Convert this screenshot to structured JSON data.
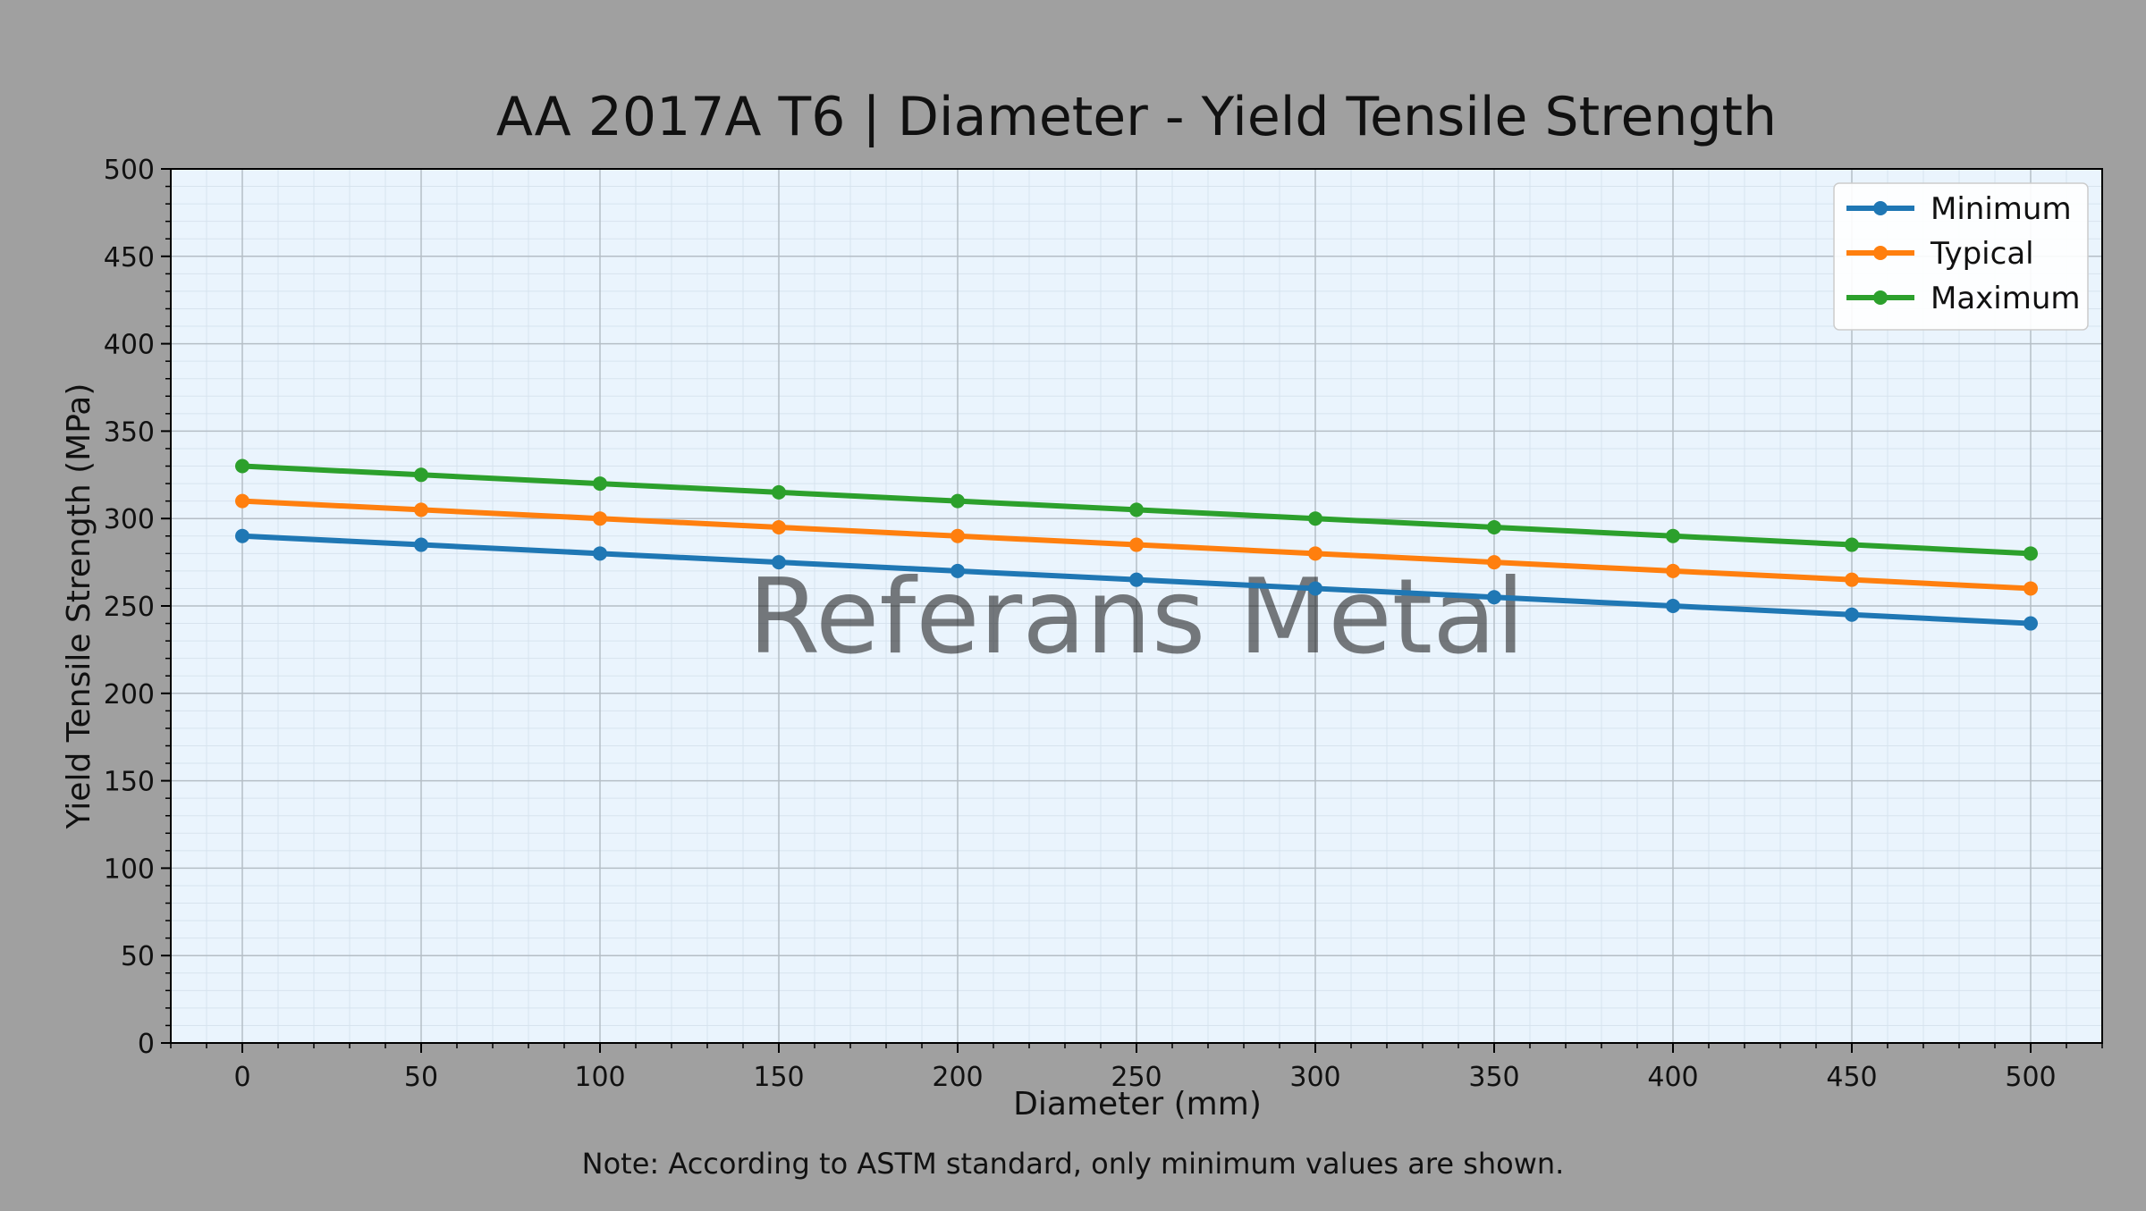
{
  "chart_data": {
    "type": "line",
    "title": "AA 2017A T6 | Diameter - Yield Tensile Strength",
    "xlabel": "Diameter (mm)",
    "ylabel": "Yield Tensile Strength (MPa)",
    "note": "Note: According to ASTM standard, only minimum values are shown.",
    "watermark": "Referans Metal",
    "x": [
      0,
      50,
      100,
      150,
      200,
      250,
      300,
      350,
      400,
      450,
      500
    ],
    "xlim": [
      -20,
      520
    ],
    "ylim": [
      0,
      500
    ],
    "xticks": [
      0,
      50,
      100,
      150,
      200,
      250,
      300,
      350,
      400,
      450,
      500
    ],
    "yticks": [
      0,
      50,
      100,
      150,
      200,
      250,
      300,
      350,
      400,
      450,
      500
    ],
    "grid": true,
    "minor_grid": true,
    "legend_position": "top-right",
    "series": [
      {
        "name": "Minimum",
        "color": "#1f77b4",
        "values": [
          290,
          285,
          280,
          275,
          270,
          265,
          260,
          255,
          250,
          245,
          240
        ]
      },
      {
        "name": "Typical",
        "color": "#ff7f0e",
        "values": [
          310,
          305,
          300,
          295,
          290,
          285,
          280,
          275,
          270,
          265,
          260
        ]
      },
      {
        "name": "Maximum",
        "color": "#2ca02c",
        "values": [
          330,
          325,
          320,
          315,
          310,
          305,
          300,
          295,
          290,
          285,
          280
        ]
      }
    ],
    "colors": {
      "figure_background": "#a0a0a0",
      "plot_background": "#eaf4fd",
      "grid_major": "#b5bec6",
      "grid_minor": "#d7e3ee",
      "watermark": "#8f8f8f"
    }
  }
}
